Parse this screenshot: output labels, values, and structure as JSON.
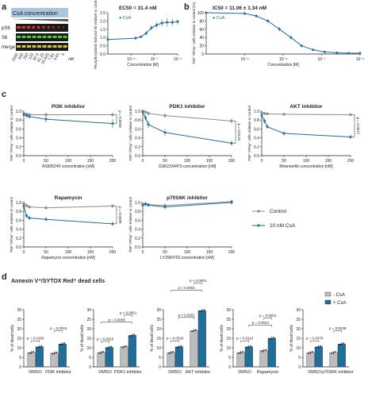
{
  "colors": {
    "control": "#8c8c8c",
    "csa": "#1f6e9c",
    "bar_light": "#bdbdbd",
    "bar_dark": "#1f6e9c",
    "dot": "#222222",
    "blot_bg": "#1a1a1a",
    "blot_red": "#e0322a",
    "blot_green": "#46c83c",
    "banner": "#a8c6e0"
  },
  "panels": {
    "a": "a",
    "b": "b",
    "c": "c",
    "d": "d"
  },
  "blot": {
    "banner": "CsA concentration",
    "row_labels": [
      "pS6",
      "S6",
      "merge"
    ],
    "lane_labels": [
      "1000",
      "500",
      "250",
      "125",
      "62.5",
      "31.25",
      "15.625",
      "7.81",
      "3.91",
      "0"
    ],
    "unit": "nM"
  },
  "chart_data": [
    {
      "id": "a_curve",
      "type": "line",
      "title": "EC50 = 31.4 nM",
      "xlabel": "Concentration [M]",
      "ylabel": "Phosphorylated S6/total S6 relative to control",
      "xscale": "log",
      "xlim": [
        1e-10,
        1e-06
      ],
      "ylim": [
        0,
        3
      ],
      "xticks": [
        "10⁻⁸",
        "10⁻⁷",
        "10⁻⁶"
      ],
      "yticks": [
        "0.0",
        "0.5",
        "1.0",
        "1.5",
        "2.0",
        "2.5"
      ],
      "series": [
        {
          "name": "CsA",
          "x": [
            1e-10,
            3.9e-09,
            7.8e-09,
            1.56e-08,
            3.13e-08,
            6.25e-08,
            1.25e-07,
            2.5e-07,
            5e-07,
            1e-06
          ],
          "y": [
            1.05,
            1.15,
            1.25,
            1.5,
            1.9,
            2.1,
            2.25,
            2.3,
            2.3,
            2.35
          ],
          "err": [
            0.1,
            0.1,
            0.1,
            0.15,
            0.2,
            0.2,
            0.25,
            0.3,
            0.25,
            0.2
          ]
        }
      ]
    },
    {
      "id": "b_curve",
      "type": "line",
      "title": "IC50 = 11.06 ± 1.34 nM",
      "xlabel": "Concentration [M]",
      "ylabel": "TNF⁺/IFNγ⁺ cells relative to control [%]",
      "xscale": "log",
      "xlim": [
        1e-10,
        1e-06
      ],
      "ylim": [
        0,
        100
      ],
      "xticks": [
        "10⁻⁹",
        "10⁻⁸",
        "10⁻⁷",
        "10⁻⁶"
      ],
      "yticks": [
        "0",
        "20",
        "40",
        "60",
        "80",
        "100"
      ],
      "series": [
        {
          "name": "CsA",
          "x": [
            1e-10,
            1e-09,
            2e-09,
            4e-09,
            8e-09,
            1.6e-08,
            3e-08,
            6e-08,
            1.2e-07,
            2.5e-07,
            5e-07,
            1e-06
          ],
          "y": [
            100,
            98,
            92,
            80,
            60,
            40,
            20,
            10,
            5,
            3,
            2,
            2
          ],
          "err": [
            3,
            3,
            4,
            4,
            5,
            5,
            4,
            3,
            2,
            2,
            2,
            2
          ]
        }
      ]
    },
    {
      "id": "c_pi3k",
      "type": "line",
      "title": "PI3K inhibitor",
      "xlabel": "AS605240 concentration [nM]",
      "ylabel": "TNF⁺/IFNγ⁺ cells relative to control",
      "xlim": [
        0,
        200
      ],
      "ylim": [
        0,
        1.0
      ],
      "xticks": [
        "0",
        "50",
        "100",
        "150",
        "200"
      ],
      "yticks": [
        "0.0",
        "0.2",
        "0.4",
        "0.6",
        "0.8",
        "1.0"
      ],
      "annotation": "p = 0.0028",
      "series": [
        {
          "name": "Control",
          "x": [
            0,
            6.25,
            12.5,
            50,
            200
          ],
          "y": [
            0.95,
            0.93,
            0.92,
            0.92,
            0.92
          ],
          "err": [
            0.04,
            0.04,
            0.04,
            0.05,
            0.05
          ]
        },
        {
          "name": "10 nM CsA",
          "x": [
            0,
            6.25,
            12.5,
            50,
            200
          ],
          "y": [
            0.92,
            0.9,
            0.88,
            0.82,
            0.72
          ],
          "err": [
            0.05,
            0.05,
            0.05,
            0.08,
            0.1
          ]
        }
      ]
    },
    {
      "id": "c_pdk1",
      "type": "line",
      "title": "PDK1 inhibitor",
      "xlabel": "GSK2334470 concentration [nM]",
      "ylabel": "TNF⁺/IFNγ⁺ cells relative to control",
      "xlim": [
        0,
        200
      ],
      "ylim": [
        0,
        1.0
      ],
      "xticks": [
        "0",
        "50",
        "100",
        "150",
        "200"
      ],
      "yticks": [
        "0.0",
        "0.2",
        "0.4",
        "0.6",
        "0.8",
        "1.0"
      ],
      "annotation": "p = 0.0129",
      "series": [
        {
          "name": "Control",
          "x": [
            0,
            6.25,
            12.5,
            50,
            200
          ],
          "y": [
            1.0,
            0.98,
            0.95,
            0.9,
            0.78
          ],
          "err": [
            0.04,
            0.04,
            0.05,
            0.05,
            0.06
          ]
        },
        {
          "name": "10 nM CsA",
          "x": [
            0,
            6.25,
            12.5,
            50,
            200
          ],
          "y": [
            0.98,
            0.85,
            0.7,
            0.52,
            0.28
          ],
          "err": [
            0.05,
            0.06,
            0.08,
            0.08,
            0.06
          ]
        }
      ]
    },
    {
      "id": "c_akt",
      "type": "line",
      "title": "AKT inhibitor",
      "xlabel": "Miransertib concentration [nM]",
      "ylabel": "TNF⁺/IFNγ⁺ cells relative to control",
      "xlim": [
        0,
        200
      ],
      "ylim": [
        0,
        1.0
      ],
      "xticks": [
        "0",
        "50",
        "100",
        "150",
        "200"
      ],
      "yticks": [
        "0.0",
        "0.2",
        "0.4",
        "0.6",
        "0.8",
        "1.0"
      ],
      "annotation": "p = 0.0077",
      "series": [
        {
          "name": "Control",
          "x": [
            0,
            6.25,
            12.5,
            50,
            200
          ],
          "y": [
            0.96,
            0.95,
            0.94,
            0.93,
            0.92
          ],
          "err": [
            0.03,
            0.03,
            0.03,
            0.03,
            0.03
          ]
        },
        {
          "name": "10 nM CsA",
          "x": [
            0,
            6.25,
            12.5,
            50,
            200
          ],
          "y": [
            0.9,
            0.78,
            0.65,
            0.5,
            0.42
          ],
          "err": [
            0.05,
            0.06,
            0.05,
            0.05,
            0.05
          ]
        }
      ]
    },
    {
      "id": "c_rapa",
      "type": "line",
      "title": "Rapamycin",
      "xlabel": "Rapamycin concentration [nM]",
      "ylabel": "TNF⁺/IFNγ⁺ cells relative to control",
      "xlim": [
        0,
        200
      ],
      "ylim": [
        0,
        1.0
      ],
      "xticks": [
        "0",
        "50",
        "100",
        "150",
        "200"
      ],
      "yticks": [
        "0.0",
        "0.2",
        "0.4",
        "0.6",
        "0.8",
        "1.0"
      ],
      "annotation": "p = 0.0288",
      "series": [
        {
          "name": "Control",
          "x": [
            0,
            6.25,
            12.5,
            50,
            200
          ],
          "y": [
            0.98,
            0.93,
            0.9,
            0.88,
            0.92
          ],
          "err": [
            0.03,
            0.04,
            0.04,
            0.04,
            0.04
          ]
        },
        {
          "name": "10 nM CsA",
          "x": [
            0,
            6.25,
            12.5,
            50,
            200
          ],
          "y": [
            0.92,
            0.7,
            0.65,
            0.62,
            0.52
          ],
          "err": [
            0.05,
            0.05,
            0.05,
            0.05,
            0.05
          ]
        }
      ]
    },
    {
      "id": "c_p70",
      "type": "line",
      "title": "p70S6K inhibitor",
      "xlabel": "LY2584702 concentration [nM]",
      "ylabel": "TNF⁺/IFNγ⁺ cells relative to control",
      "xlim": [
        0,
        200
      ],
      "ylim": [
        0,
        1.0
      ],
      "xticks": [
        "0",
        "50",
        "100",
        "150",
        "200"
      ],
      "yticks": [
        "0.0",
        "0.2",
        "0.4",
        "0.6",
        "0.8",
        "1.0"
      ],
      "series": [
        {
          "name": "Control",
          "x": [
            0,
            6.25,
            12.5,
            50,
            200
          ],
          "y": [
            0.96,
            0.97,
            0.95,
            0.93,
            1.02
          ],
          "err": [
            0.04,
            0.04,
            0.04,
            0.05,
            0.05
          ]
        },
        {
          "name": "10 nM CsA",
          "x": [
            0,
            6.25,
            12.5,
            50,
            200
          ],
          "y": [
            0.94,
            0.96,
            0.94,
            0.9,
            1.0
          ],
          "err": [
            0.04,
            0.04,
            0.04,
            0.05,
            0.05
          ]
        }
      ]
    },
    {
      "id": "d_pi3k",
      "type": "bar",
      "ylabel": "% of dead cells",
      "categories": [
        "DMSO",
        "PI3K inhibitor"
      ],
      "ylim": [
        0,
        30
      ],
      "yticks": [
        "0",
        "5",
        "10",
        "15",
        "20",
        "25",
        "30"
      ],
      "series": [
        {
          "name": "- CsA",
          "values": [
            7.5,
            7.2
          ]
        },
        {
          "name": "+ CsA",
          "values": [
            10.5,
            12.0
          ]
        }
      ],
      "comparisons": [
        {
          "label": "p = 0.0186",
          "from": 0,
          "to": 1
        },
        {
          "label": "p = 0.0015",
          "from": 2,
          "to": 3
        }
      ]
    },
    {
      "id": "d_pdk1",
      "type": "bar",
      "ylabel": "% of dead cells",
      "categories": [
        "DMSO",
        "PDK1 inhibitor"
      ],
      "ylim": [
        0,
        30
      ],
      "yticks": [
        "0",
        "5",
        "10",
        "15",
        "20",
        "25",
        "30"
      ],
      "series": [
        {
          "name": "- CsA",
          "values": [
            7.5,
            10.5
          ]
        },
        {
          "name": "+ CsA",
          "values": [
            10.2,
            16.5
          ]
        }
      ],
      "comparisons": [
        {
          "label": "p = 0.0010",
          "from": 0,
          "to": 1
        },
        {
          "label": "p = 0.0005",
          "from": 0,
          "to": 3
        },
        {
          "label": "p < 0.0001",
          "from": 2,
          "to": 3
        }
      ]
    },
    {
      "id": "d_akt",
      "type": "bar",
      "ylabel": "% of dead cells",
      "categories": [
        "DMSO",
        "AKT inhibitor"
      ],
      "ylim": [
        0,
        30
      ],
      "yticks": [
        "0",
        "5",
        "10",
        "15",
        "20",
        "25",
        "30"
      ],
      "series": [
        {
          "name": "- CsA",
          "values": [
            7.5,
            19.0
          ]
        },
        {
          "name": "+ CsA",
          "values": [
            10.5,
            29.5
          ]
        }
      ],
      "comparisons": [
        {
          "label": "p = 0.0026",
          "from": 0,
          "to": 1
        },
        {
          "label": "p < 0.0001",
          "from": 1,
          "to": 2
        },
        {
          "label": "p < 0.0001",
          "from": 0,
          "to": 3
        },
        {
          "label": "p < 0.0001",
          "from": 2,
          "to": 3
        }
      ]
    },
    {
      "id": "d_rapa",
      "type": "bar",
      "ylabel": "% of dead cells",
      "categories": [
        "DMSO",
        "Rapamycin"
      ],
      "ylim": [
        0,
        30
      ],
      "yticks": [
        "0",
        "5",
        "10",
        "15",
        "20",
        "25",
        "30"
      ],
      "series": [
        {
          "name": "- CsA",
          "values": [
            7.5,
            8.5
          ]
        },
        {
          "name": "+ CsA",
          "values": [
            10.5,
            15.0
          ]
        }
      ],
      "comparisons": [
        {
          "label": "p = 0.0114",
          "from": 0,
          "to": 1
        },
        {
          "label": "p = 0.0034",
          "from": 1,
          "to": 3
        },
        {
          "label": "p = 0.0001",
          "from": 2,
          "to": 3
        }
      ]
    },
    {
      "id": "d_p70",
      "type": "bar",
      "ylabel": "% of dead cells",
      "categories": [
        "DMSO",
        "p70S6K inhibitor"
      ],
      "ylim": [
        0,
        30
      ],
      "yticks": [
        "0",
        "5",
        "10",
        "15",
        "20",
        "25",
        "30"
      ],
      "series": [
        {
          "name": "- CsA",
          "values": [
            7.5,
            7.5
          ]
        },
        {
          "name": "+ CsA",
          "values": [
            10.5,
            12.0
          ]
        }
      ],
      "comparisons": [
        {
          "label": "p = 0.0078",
          "from": 0,
          "to": 1
        },
        {
          "label": "p = 0.0025",
          "from": 2,
          "to": 3
        }
      ]
    }
  ],
  "legends": {
    "c": [
      "Control",
      "10 nM CsA"
    ],
    "d": [
      "- CsA",
      "+ CsA"
    ]
  },
  "d_title": "Annexin V⁺/SYTOX Red⁺ dead cells"
}
